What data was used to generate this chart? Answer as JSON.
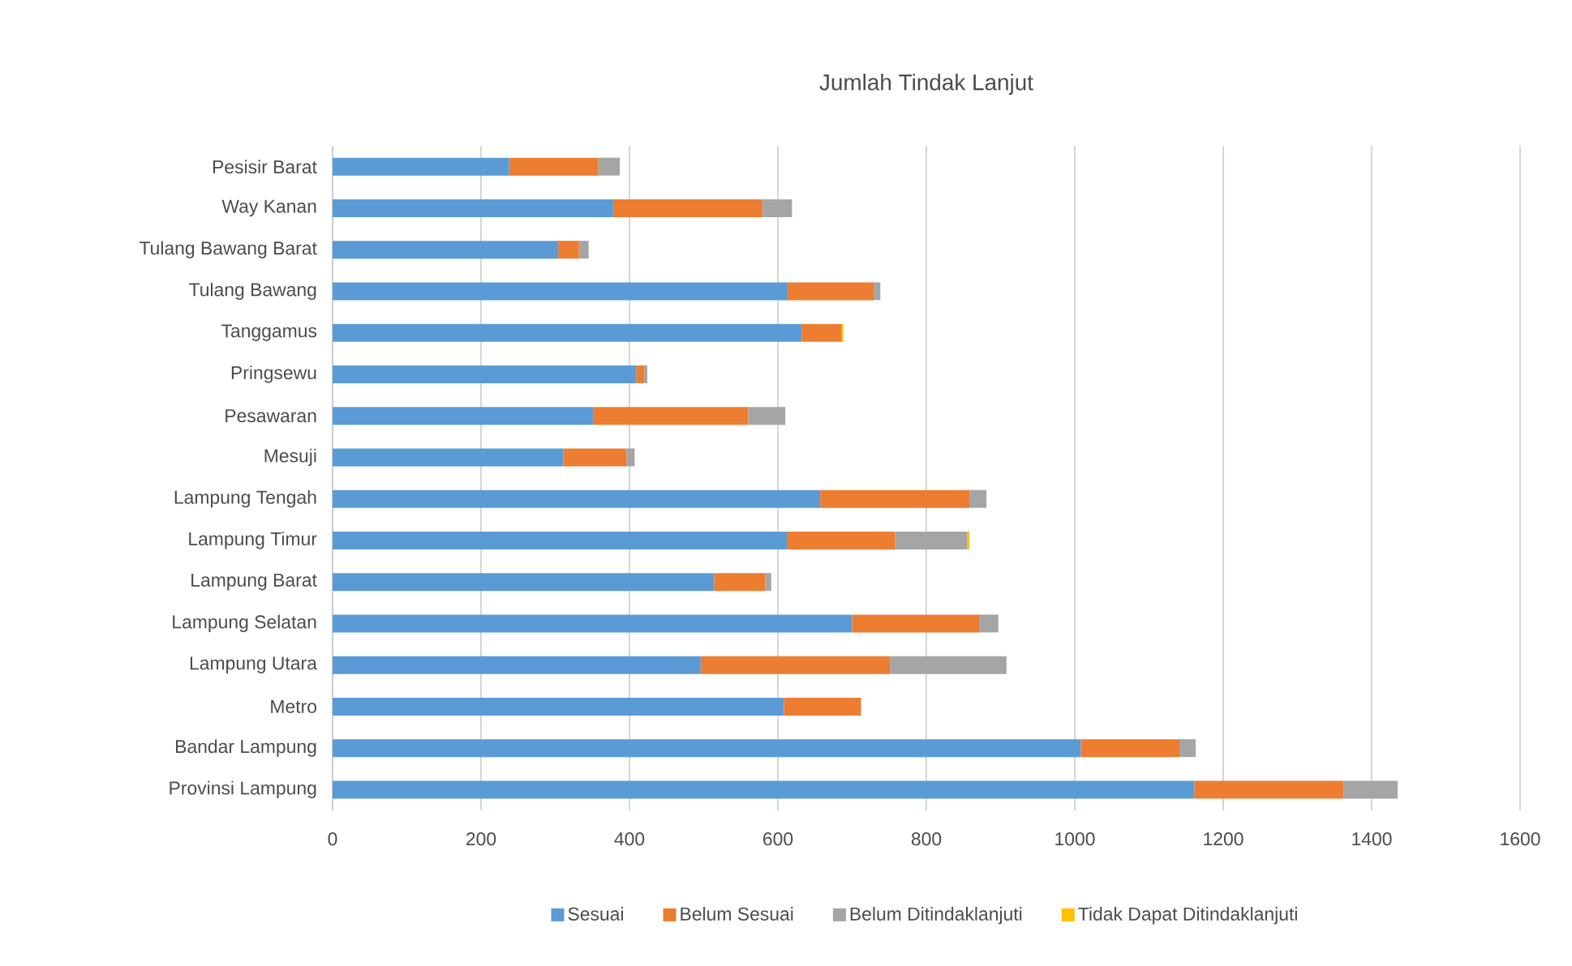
{
  "chart_data": {
    "type": "bar",
    "orientation": "horizontal",
    "stacked": true,
    "title": "Jumlah Tindak Lanjut",
    "categories": [
      "Pesisir Barat",
      "Way Kanan",
      "Tulang Bawang Barat",
      "Tulang Bawang",
      "Tanggamus",
      "Pringsewu",
      "Pesawaran",
      "Mesuji",
      "Lampung Tengah",
      "Lampung Timur",
      "Lampung Barat",
      "Lampung Selatan",
      "Lampung Utara",
      "Metro",
      "Bandar Lampung",
      "Provinsi Lampung"
    ],
    "series": [
      {
        "name": "Sesuai",
        "color": "#5b9bd5",
        "values": [
          238,
          378,
          304,
          613,
          632,
          409,
          351,
          311,
          657,
          612,
          514,
          700,
          496,
          608,
          1008,
          1161
        ]
      },
      {
        "name": "Belum Sesuai",
        "color": "#ed7d31",
        "values": [
          120,
          201,
          28,
          116,
          54,
          11,
          209,
          85,
          201,
          146,
          69,
          171,
          255,
          104,
          133,
          201
        ]
      },
      {
        "name": "Belum Ditindaklanjuti",
        "color": "#a5a5a5",
        "values": [
          29,
          40,
          13,
          9,
          0,
          4,
          50,
          11,
          23,
          97,
          8,
          26,
          157,
          0,
          22,
          73
        ]
      },
      {
        "name": "Tidak Dapat Ditindaklanjuti",
        "color": "#ffc000",
        "values": [
          0,
          0,
          0,
          0,
          2,
          0,
          0,
          0,
          0,
          3,
          0,
          0,
          0,
          0,
          0,
          0
        ]
      }
    ],
    "xlim": [
      0,
      1600
    ],
    "xticks": [
      0,
      200,
      400,
      600,
      800,
      1000,
      1200,
      1400,
      1600
    ],
    "grid": "x",
    "legend": "bottom"
  }
}
